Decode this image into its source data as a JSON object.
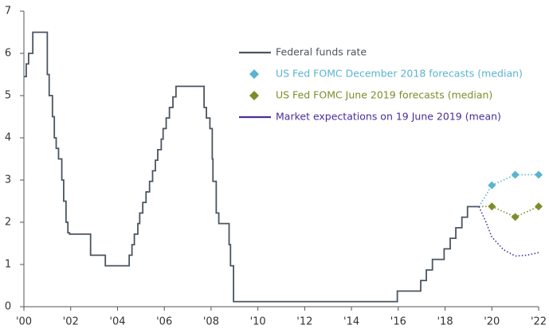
{
  "chart_data": {
    "type": "line",
    "xlim": [
      2000,
      2022
    ],
    "xticks": [
      {
        "value": 2000,
        "label": "'00"
      },
      {
        "value": 2002,
        "label": "'02"
      },
      {
        "value": 2004,
        "label": "'04"
      },
      {
        "value": 2006,
        "label": "'06"
      },
      {
        "value": 2008,
        "label": "'08"
      },
      {
        "value": 2010,
        "label": "'10"
      },
      {
        "value": 2012,
        "label": "'12"
      },
      {
        "value": 2014,
        "label": "'14"
      },
      {
        "value": 2016,
        "label": "'16"
      },
      {
        "value": 2018,
        "label": "'18"
      },
      {
        "value": 2020,
        "label": "'20"
      },
      {
        "value": 2022,
        "label": "'22"
      }
    ],
    "ylim": [
      0,
      7
    ],
    "yticks": [
      0,
      1,
      2,
      3,
      4,
      5,
      6,
      7
    ],
    "grid": false,
    "series": [
      {
        "name": "Federal funds rate",
        "color": "#4a5560",
        "style": "solid",
        "step": "post",
        "marker": null,
        "x": [
          2000.0,
          2000.1,
          2000.2,
          2000.38,
          2001.0,
          2001.08,
          2001.22,
          2001.3,
          2001.38,
          2001.48,
          2001.62,
          2001.7,
          2001.8,
          2001.88,
          2001.95,
          2002.85,
          2003.48,
          2004.5,
          2004.62,
          2004.72,
          2004.87,
          2004.95,
          2005.08,
          2005.22,
          2005.37,
          2005.5,
          2005.62,
          2005.72,
          2005.87,
          2005.95,
          2006.08,
          2006.22,
          2006.37,
          2006.5,
          2007.7,
          2007.8,
          2007.95,
          2008.05,
          2008.08,
          2008.22,
          2008.33,
          2008.77,
          2008.83,
          2008.96,
          2015.96,
          2016.96,
          2017.2,
          2017.46,
          2017.96,
          2018.22,
          2018.46,
          2018.72,
          2018.96,
          2019.45
        ],
        "values": [
          5.45,
          5.75,
          6.0,
          6.5,
          5.5,
          5.0,
          4.5,
          4.0,
          3.75,
          3.5,
          3.0,
          2.5,
          2.0,
          1.75,
          1.72,
          1.22,
          0.97,
          1.22,
          1.47,
          1.72,
          1.97,
          2.22,
          2.47,
          2.72,
          2.97,
          3.22,
          3.47,
          3.72,
          3.97,
          4.22,
          4.47,
          4.72,
          4.97,
          5.22,
          4.72,
          4.47,
          4.22,
          3.5,
          2.97,
          2.22,
          1.97,
          1.47,
          0.97,
          0.12,
          0.37,
          0.62,
          0.87,
          1.12,
          1.37,
          1.62,
          1.87,
          2.12,
          2.37,
          2.37
        ]
      },
      {
        "name": "US Fed FOMC December 2018 forecasts (median)",
        "color": "#5bb3cf",
        "style": "dotted",
        "marker": "diamond",
        "x": [
          2020,
          2021,
          2022
        ],
        "values": [
          2.875,
          3.125,
          3.125
        ]
      },
      {
        "name": "US Fed FOMC June 2019 forecasts (median)",
        "color": "#7f8c2a",
        "style": "dotted",
        "marker": "diamond",
        "x": [
          2020,
          2021,
          2022
        ],
        "values": [
          2.375,
          2.125,
          2.375
        ]
      },
      {
        "name": "Market expectations on 19 June 2019 (mean)",
        "color": "#4b2c99",
        "style": "dotted",
        "marker": null,
        "x": [
          2019.45,
          2019.75,
          2020,
          2020.5,
          2021,
          2021.5,
          2022
        ],
        "values": [
          2.37,
          2.0,
          1.65,
          1.35,
          1.2,
          1.22,
          1.28
        ]
      }
    ]
  }
}
